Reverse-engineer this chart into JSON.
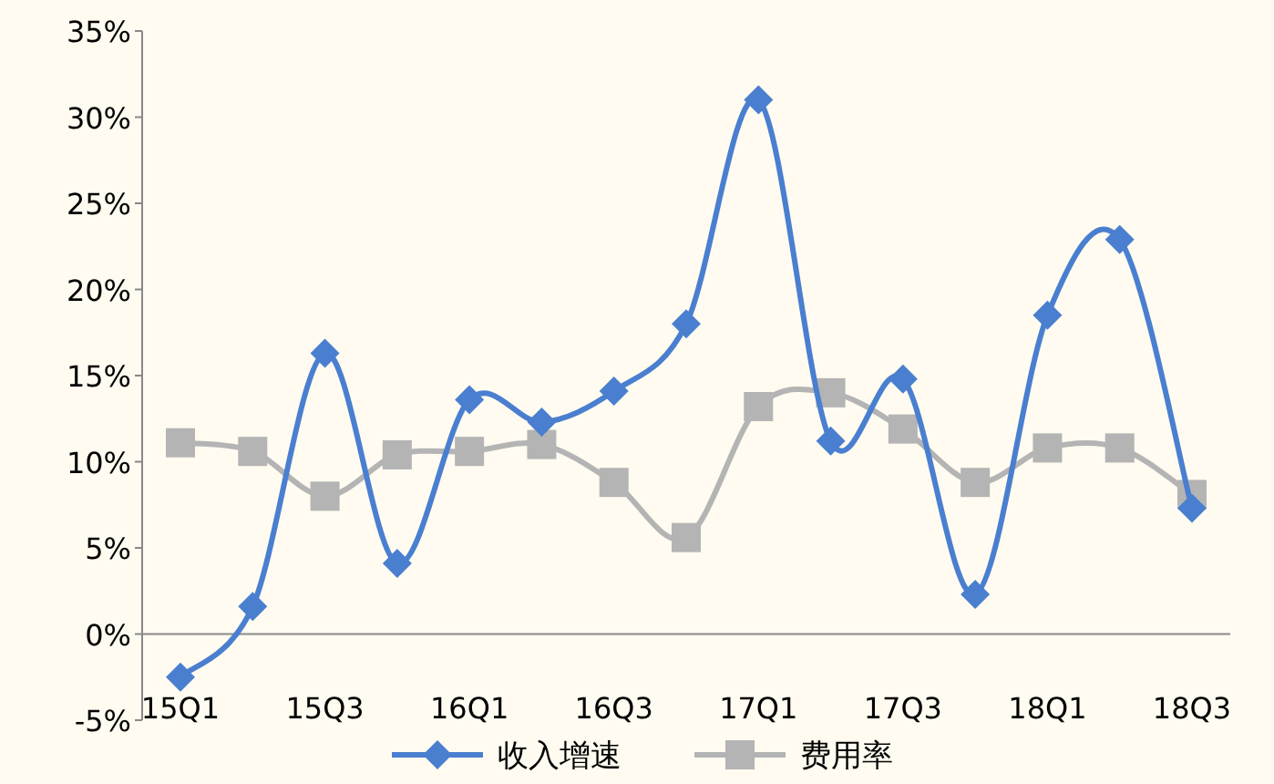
{
  "chart_data": {
    "type": "line",
    "categories": [
      "15Q1",
      null,
      "15Q3",
      null,
      "16Q1",
      null,
      "16Q3",
      null,
      "17Q1",
      null,
      "17Q3",
      null,
      "18Q1",
      null,
      "18Q3"
    ],
    "series": [
      {
        "name": "收入增速",
        "color": "#4a7fd0",
        "marker": "diamond",
        "values": [
          -2.5,
          1.6,
          16.3,
          4.1,
          13.6,
          12.3,
          14.1,
          18.0,
          31.0,
          11.2,
          14.8,
          2.3,
          18.5,
          22.9,
          7.3
        ]
      },
      {
        "name": "费用率",
        "color": "#b4b4b4",
        "marker": "square",
        "values": [
          11.1,
          10.6,
          8.0,
          10.4,
          10.6,
          11.0,
          8.8,
          5.6,
          13.2,
          14.0,
          11.9,
          8.8,
          10.8,
          10.8,
          8.1
        ]
      }
    ],
    "ylim": [
      -5,
      35
    ],
    "yticks": [
      {
        "value": -5,
        "label": "-5%"
      },
      {
        "value": 0,
        "label": "0%"
      },
      {
        "value": 5,
        "label": "5%"
      },
      {
        "value": 10,
        "label": "10%"
      },
      {
        "value": 15,
        "label": "15%"
      },
      {
        "value": 20,
        "label": "20%"
      },
      {
        "value": 25,
        "label": "25%"
      },
      {
        "value": 30,
        "label": "30%"
      },
      {
        "value": 35,
        "label": "35%"
      }
    ],
    "grid": false,
    "legend": "bottom"
  }
}
